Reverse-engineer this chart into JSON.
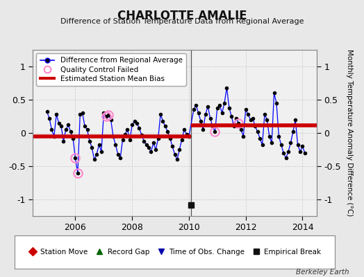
{
  "title": "CHARLOTTE AMALIE",
  "subtitle": "Difference of Station Temperature Data from Regional Average",
  "ylabel": "Monthly Temperature Anomaly Difference (°C)",
  "xlabel_years": [
    2006,
    2008,
    2010,
    2012,
    2014
  ],
  "xlim": [
    2004.5,
    2014.5
  ],
  "ylim": [
    -1.25,
    1.25
  ],
  "yticks": [
    -1,
    -0.5,
    0,
    0.5,
    1
  ],
  "fig_background": "#e8e8e8",
  "plot_background": "#f0f0f0",
  "grid_color": "#d0d0d0",
  "line_color": "#0000ff",
  "marker_color": "#000000",
  "bias_color": "#cc0000",
  "qc_color": "#ff88cc",
  "vertical_line_color": "#555555",
  "vertical_line_x": 2010.08,
  "bias_before": -0.055,
  "bias_after": 0.115,
  "break_marker_x": 2010.08,
  "break_marker_y": -1.08,
  "time_data": [
    2005.0,
    2005.083,
    2005.167,
    2005.25,
    2005.333,
    2005.417,
    2005.5,
    2005.583,
    2005.667,
    2005.75,
    2005.833,
    2005.917,
    2006.0,
    2006.083,
    2006.167,
    2006.25,
    2006.333,
    2006.417,
    2006.5,
    2006.583,
    2006.667,
    2006.75,
    2006.833,
    2006.917,
    2007.0,
    2007.083,
    2007.167,
    2007.25,
    2007.333,
    2007.417,
    2007.5,
    2007.583,
    2007.667,
    2007.75,
    2007.833,
    2007.917,
    2008.0,
    2008.083,
    2008.167,
    2008.25,
    2008.333,
    2008.417,
    2008.5,
    2008.583,
    2008.667,
    2008.75,
    2008.833,
    2008.917,
    2009.0,
    2009.083,
    2009.167,
    2009.25,
    2009.333,
    2009.417,
    2009.5,
    2009.583,
    2009.667,
    2009.75,
    2009.833,
    2009.917,
    2010.0,
    2010.167,
    2010.25,
    2010.333,
    2010.417,
    2010.5,
    2010.583,
    2010.667,
    2010.75,
    2010.833,
    2010.917,
    2011.0,
    2011.083,
    2011.167,
    2011.25,
    2011.333,
    2011.417,
    2011.5,
    2011.583,
    2011.667,
    2011.75,
    2011.833,
    2011.917,
    2012.0,
    2012.083,
    2012.167,
    2012.25,
    2012.333,
    2012.417,
    2012.5,
    2012.583,
    2012.667,
    2012.75,
    2012.833,
    2012.917,
    2013.0,
    2013.083,
    2013.167,
    2013.25,
    2013.333,
    2013.417,
    2013.5,
    2013.583,
    2013.667,
    2013.75,
    2013.833,
    2013.917,
    2014.0,
    2014.083
  ],
  "values": [
    0.32,
    0.22,
    0.05,
    -0.05,
    0.28,
    0.15,
    0.1,
    -0.12,
    0.05,
    0.12,
    0.02,
    -0.08,
    -0.38,
    -0.6,
    0.28,
    0.3,
    0.1,
    0.05,
    -0.12,
    -0.22,
    -0.4,
    -0.32,
    -0.18,
    -0.28,
    0.3,
    0.25,
    0.27,
    0.2,
    -0.05,
    -0.18,
    -0.32,
    -0.38,
    -0.1,
    -0.02,
    0.05,
    -0.1,
    0.12,
    0.18,
    0.15,
    0.07,
    -0.03,
    -0.12,
    -0.18,
    -0.22,
    -0.28,
    -0.15,
    -0.25,
    -0.08,
    0.28,
    0.18,
    0.1,
    0.02,
    -0.08,
    -0.2,
    -0.32,
    -0.4,
    -0.25,
    -0.1,
    0.05,
    -0.02,
    -0.05,
    0.35,
    0.42,
    0.3,
    0.18,
    0.05,
    0.28,
    0.4,
    0.22,
    0.1,
    0.02,
    0.38,
    0.42,
    0.3,
    0.45,
    0.68,
    0.38,
    0.25,
    0.1,
    0.22,
    0.15,
    0.05,
    -0.05,
    0.35,
    0.28,
    0.2,
    0.22,
    0.1,
    0.02,
    -0.08,
    -0.18,
    0.28,
    0.2,
    -0.05,
    -0.15,
    0.6,
    0.45,
    -0.05,
    -0.18,
    -0.3,
    -0.38,
    -0.28,
    -0.15,
    0.02,
    0.2,
    -0.18,
    -0.28,
    -0.2,
    -0.3
  ],
  "qc_failed_indices": [
    12,
    13,
    25,
    26,
    70,
    80
  ],
  "watermark": "Berkeley Earth"
}
